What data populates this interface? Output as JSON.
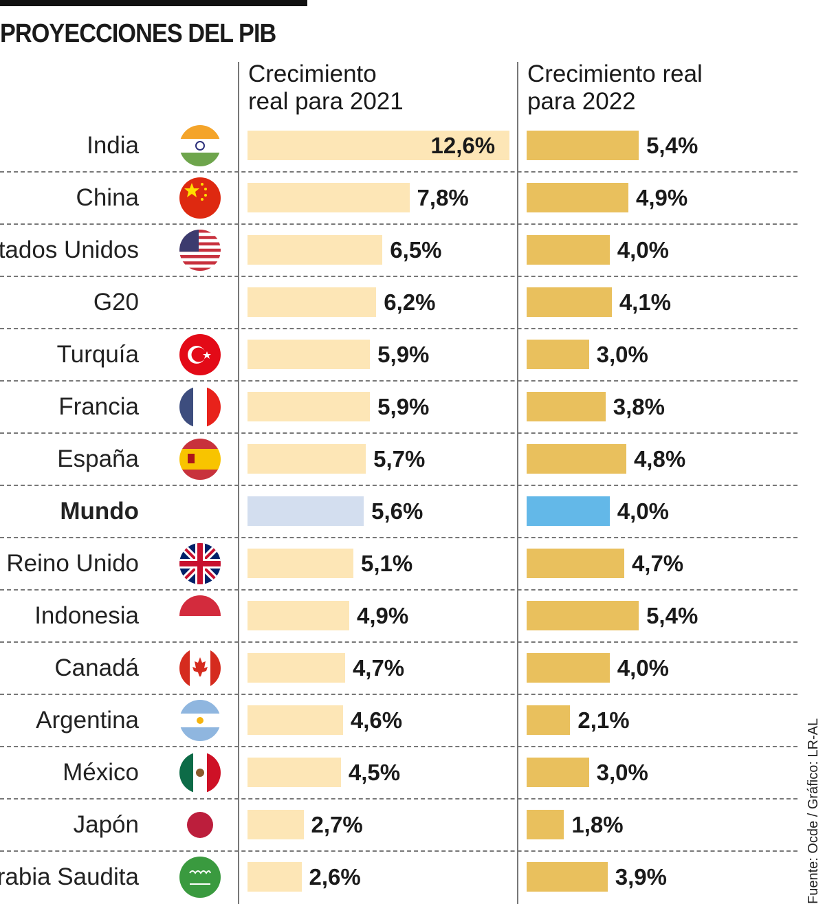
{
  "title": "PROYECCIONES DEL PIB",
  "source": "Fuente: Ocde / Gráfico: LR-AL",
  "colors": {
    "bar_2021": "#fde6b6",
    "bar_2022": "#e9c05d",
    "mundo_2021": "#d3deef",
    "mundo_2022": "#63b8e8"
  },
  "chart_data": {
    "type": "bar",
    "orientation": "horizontal",
    "categories": [
      "India",
      "China",
      "Estados Unidos",
      "G20",
      "Turquía",
      "Francia",
      "España",
      "Mundo",
      "Reino Unido",
      "Indonesia",
      "Canadá",
      "Argentina",
      "México",
      "Japón",
      "Arabia Saudita"
    ],
    "flag_icons": [
      "india-flag",
      "china-flag",
      "usa-flag",
      "",
      "turkey-flag",
      "france-flag",
      "spain-flag",
      "",
      "uk-flag",
      "indonesia-flag",
      "canada-flag",
      "argentina-flag",
      "mexico-flag",
      "japan-flag",
      "saudi-arabia-flag"
    ],
    "highlight": "Mundo",
    "series": [
      {
        "name": "Crecimiento\nreal para 2021",
        "values": [
          12.6,
          7.8,
          6.5,
          6.2,
          5.9,
          5.9,
          5.7,
          5.6,
          5.1,
          4.9,
          4.7,
          4.6,
          4.5,
          2.7,
          2.6
        ],
        "labels": [
          "12,6%",
          "7,8%",
          "6,5%",
          "6,2%",
          "5,9%",
          "5,9%",
          "5,7%",
          "5,6%",
          "5,1%",
          "4,9%",
          "4,7%",
          "4,6%",
          "4,5%",
          "2,7%",
          "2,6%"
        ]
      },
      {
        "name": "Crecimiento real\npara 2022",
        "values": [
          5.4,
          4.9,
          4.0,
          4.1,
          3.0,
          3.8,
          4.8,
          4.0,
          4.7,
          5.4,
          4.0,
          2.1,
          3.0,
          1.8,
          3.9
        ],
        "labels": [
          "5,4%",
          "4,9%",
          "4,0%",
          "4,1%",
          "3,0%",
          "3,8%",
          "4,8%",
          "4,0%",
          "4,7%",
          "5,4%",
          "4,0%",
          "2,1%",
          "3,0%",
          "1,8%",
          "3,9%"
        ]
      }
    ],
    "unit": "%",
    "grid": false,
    "legend": "none"
  }
}
